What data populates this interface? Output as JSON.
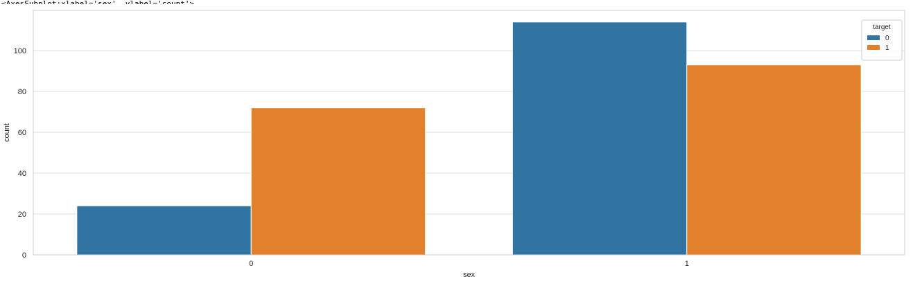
{
  "header": {
    "code_output": "<AxesSubplot:xlabel='sex', ylabel='count'>"
  },
  "chart_data": {
    "type": "bar",
    "xlabel": "sex",
    "ylabel": "count",
    "categories": [
      "0",
      "1"
    ],
    "series": [
      {
        "name": "0",
        "values": [
          24,
          114
        ],
        "color": "#3274a1"
      },
      {
        "name": "1",
        "values": [
          72,
          93
        ],
        "color": "#e1812c"
      }
    ],
    "ylim": [
      0,
      119.7
    ],
    "yticks": [
      0,
      20,
      40,
      60,
      80,
      100
    ],
    "grid": true,
    "legend": {
      "title": "target",
      "placement": "top-right"
    },
    "style": {
      "grid_color": "#dddddd",
      "spine_color": "#cccccc",
      "bar_edge_color": "#ffffff"
    }
  }
}
